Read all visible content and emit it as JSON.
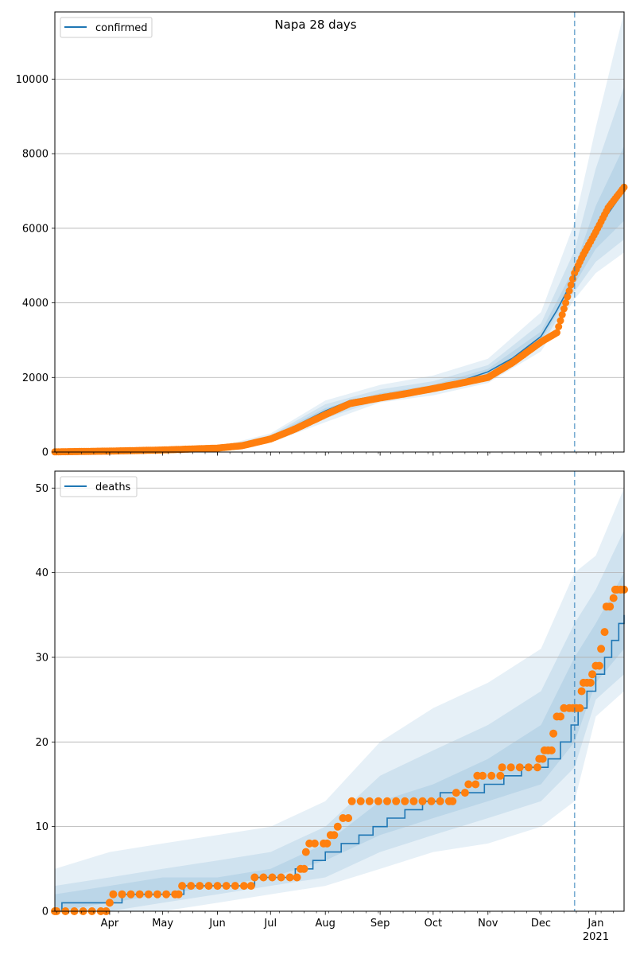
{
  "title": "Napa 28 days",
  "colors": {
    "model": "#1f77b4",
    "observed": "#ff7f0e",
    "band": "#1f77b4",
    "grid": "#b0b0b0",
    "cutoff": "#1f77b4"
  },
  "x_ticks": [
    {
      "label": "Apr",
      "date": "2020-04-01"
    },
    {
      "label": "May",
      "date": "2020-05-01"
    },
    {
      "label": "Jun",
      "date": "2020-06-01"
    },
    {
      "label": "Jul",
      "date": "2020-07-01"
    },
    {
      "label": "Aug",
      "date": "2020-08-01"
    },
    {
      "label": "Sep",
      "date": "2020-09-01"
    },
    {
      "label": "Oct",
      "date": "2020-10-01"
    },
    {
      "label": "Nov",
      "date": "2020-11-01"
    },
    {
      "label": "Dec",
      "date": "2020-12-01"
    },
    {
      "label": "Jan",
      "date": "2021-01-01"
    }
  ],
  "x_year_label": "2021",
  "chart_data": [
    {
      "type": "line",
      "legend": "confirmed",
      "legend_position": "upper left",
      "grid": true,
      "xlim": [
        "2020-03-01",
        "2021-01-17"
      ],
      "ylim": [
        0,
        11800
      ],
      "yticks": [
        0,
        2000,
        4000,
        6000,
        8000,
        10000
      ],
      "forecast_start": "2020-12-20",
      "series": [
        {
          "name": "confirmed",
          "kind": "model",
          "x": [
            "2020-03-01",
            "2020-04-01",
            "2020-05-01",
            "2020-06-01",
            "2020-06-15",
            "2020-07-01",
            "2020-07-15",
            "2020-08-01",
            "2020-08-15",
            "2020-09-01",
            "2020-09-15",
            "2020-10-01",
            "2020-10-15",
            "2020-11-01",
            "2020-11-15",
            "2020-12-01",
            "2020-12-10",
            "2020-12-20",
            "2020-12-25",
            "2021-01-01",
            "2021-01-08",
            "2021-01-17"
          ],
          "y": [
            0,
            20,
            50,
            100,
            180,
            380,
            700,
            1100,
            1380,
            1520,
            1620,
            1730,
            1880,
            2150,
            2520,
            3100,
            3800,
            4700,
            5150,
            5800,
            6400,
            7000
          ]
        },
        {
          "name": "observed",
          "kind": "scatter",
          "x": [
            "2020-03-01",
            "2020-04-01",
            "2020-05-01",
            "2020-06-01",
            "2020-06-15",
            "2020-07-01",
            "2020-07-15",
            "2020-08-01",
            "2020-08-15",
            "2020-09-01",
            "2020-09-15",
            "2020-10-01",
            "2020-10-15",
            "2020-11-01",
            "2020-11-15",
            "2020-12-01",
            "2020-12-10",
            "2020-12-20",
            "2020-12-25",
            "2021-01-01",
            "2021-01-08",
            "2021-01-17"
          ],
          "y": [
            5,
            25,
            55,
            105,
            170,
            350,
            620,
            1000,
            1300,
            1450,
            1560,
            1700,
            1830,
            2000,
            2400,
            2950,
            3200,
            4800,
            5300,
            5900,
            6550,
            7100
          ]
        }
      ],
      "bands": [
        {
          "level": "outer",
          "x": [
            "2020-03-01",
            "2020-06-01",
            "2020-07-01",
            "2020-08-01",
            "2020-09-01",
            "2020-10-01",
            "2020-11-01",
            "2020-12-01",
            "2020-12-20",
            "2021-01-01",
            "2021-01-17"
          ],
          "lower": [
            0,
            70,
            250,
            800,
            1330,
            1520,
            1850,
            2700,
            4100,
            4800,
            5350
          ],
          "upper": [
            60,
            140,
            500,
            1380,
            1800,
            2050,
            2500,
            3750,
            6150,
            8700,
            11800
          ]
        },
        {
          "level": "mid",
          "x": [
            "2020-03-01",
            "2020-06-01",
            "2020-07-01",
            "2020-08-01",
            "2020-09-01",
            "2020-10-01",
            "2020-11-01",
            "2020-12-01",
            "2020-12-20",
            "2021-01-01",
            "2021-01-17"
          ],
          "lower": [
            0,
            80,
            290,
            900,
            1400,
            1600,
            1950,
            2850,
            4300,
            5100,
            5700
          ],
          "upper": [
            40,
            120,
            450,
            1280,
            1680,
            1900,
            2330,
            3450,
            5400,
            7600,
            9800
          ]
        },
        {
          "level": "inner",
          "x": [
            "2020-03-01",
            "2020-06-01",
            "2020-07-01",
            "2020-08-01",
            "2020-09-01",
            "2020-10-01",
            "2020-11-01",
            "2020-12-01",
            "2020-12-20",
            "2021-01-01",
            "2021-01-17"
          ],
          "lower": [
            0,
            90,
            330,
            1000,
            1460,
            1670,
            2050,
            2980,
            4500,
            5450,
            6200
          ],
          "upper": [
            30,
            110,
            420,
            1180,
            1580,
            1800,
            2230,
            3230,
            4950,
            6600,
            8200
          ]
        }
      ]
    },
    {
      "type": "line",
      "legend": "deaths",
      "legend_position": "upper left",
      "grid": true,
      "xlim": [
        "2020-03-01",
        "2021-01-17"
      ],
      "ylim": [
        0,
        52
      ],
      "yticks": [
        0,
        10,
        20,
        30,
        40,
        50
      ],
      "forecast_start": "2020-12-20",
      "series": [
        {
          "name": "deaths",
          "kind": "model",
          "x": [
            "2020-03-01",
            "2020-03-05",
            "2020-04-05",
            "2020-04-08",
            "2020-05-13",
            "2020-05-15",
            "2020-06-15",
            "2020-06-22",
            "2020-07-05",
            "2020-07-15",
            "2020-07-25",
            "2020-08-01",
            "2020-08-10",
            "2020-08-20",
            "2020-08-28",
            "2020-09-05",
            "2020-09-15",
            "2020-09-25",
            "2020-10-05",
            "2020-10-20",
            "2020-10-30",
            "2020-11-10",
            "2020-11-20",
            "2020-11-28",
            "2020-12-05",
            "2020-12-12",
            "2020-12-18",
            "2020-12-22",
            "2020-12-27",
            "2021-01-01",
            "2021-01-06",
            "2021-01-10",
            "2021-01-14",
            "2021-01-17"
          ],
          "y": [
            0,
            1,
            1,
            2,
            3,
            3,
            3,
            4,
            4,
            5,
            6,
            7,
            8,
            9,
            10,
            11,
            12,
            13,
            14,
            14,
            15,
            16,
            17,
            17,
            18,
            20,
            22,
            24,
            26,
            28,
            30,
            32,
            34,
            35
          ]
        },
        {
          "name": "observed",
          "kind": "scatter",
          "x": [
            "2020-03-01",
            "2020-03-02",
            "2020-03-07",
            "2020-03-12",
            "2020-03-17",
            "2020-03-22",
            "2020-03-27",
            "2020-03-30",
            "2020-04-01",
            "2020-04-03",
            "2020-04-08",
            "2020-04-13",
            "2020-04-18",
            "2020-04-23",
            "2020-04-28",
            "2020-05-03",
            "2020-05-08",
            "2020-05-10",
            "2020-05-12",
            "2020-05-17",
            "2020-05-22",
            "2020-05-27",
            "2020-06-01",
            "2020-06-06",
            "2020-06-11",
            "2020-06-16",
            "2020-06-20",
            "2020-06-22",
            "2020-06-27",
            "2020-07-02",
            "2020-07-07",
            "2020-07-12",
            "2020-07-16",
            "2020-07-18",
            "2020-07-20",
            "2020-07-21",
            "2020-07-23",
            "2020-07-26",
            "2020-07-31",
            "2020-08-02",
            "2020-08-04",
            "2020-08-06",
            "2020-08-08",
            "2020-08-11",
            "2020-08-14",
            "2020-08-16",
            "2020-08-21",
            "2020-08-26",
            "2020-08-31",
            "2020-09-05",
            "2020-09-10",
            "2020-09-15",
            "2020-09-20",
            "2020-09-25",
            "2020-09-30",
            "2020-10-05",
            "2020-10-10",
            "2020-10-12",
            "2020-10-14",
            "2020-10-19",
            "2020-10-21",
            "2020-10-25",
            "2020-10-26",
            "2020-10-29",
            "2020-11-03",
            "2020-11-08",
            "2020-11-09",
            "2020-11-14",
            "2020-11-19",
            "2020-11-24",
            "2020-11-29",
            "2020-11-30",
            "2020-12-02",
            "2020-12-03",
            "2020-12-05",
            "2020-12-07",
            "2020-12-08",
            "2020-12-10",
            "2020-12-12",
            "2020-12-14",
            "2020-12-17",
            "2020-12-19",
            "2020-12-21",
            "2020-12-23",
            "2020-12-24",
            "2020-12-25",
            "2020-12-27",
            "2020-12-29",
            "2020-12-30",
            "2021-01-01",
            "2021-01-03",
            "2021-01-04",
            "2021-01-06",
            "2021-01-07",
            "2021-01-09",
            "2021-01-11",
            "2021-01-12",
            "2021-01-13",
            "2021-01-15",
            "2021-01-17"
          ],
          "y": [
            0,
            0,
            0,
            0,
            0,
            0,
            0,
            0,
            1,
            2,
            2,
            2,
            2,
            2,
            2,
            2,
            2,
            2,
            3,
            3,
            3,
            3,
            3,
            3,
            3,
            3,
            3,
            4,
            4,
            4,
            4,
            4,
            4,
            5,
            5,
            7,
            8,
            8,
            8,
            8,
            9,
            9,
            10,
            11,
            11,
            13,
            13,
            13,
            13,
            13,
            13,
            13,
            13,
            13,
            13,
            13,
            13,
            13,
            14,
            14,
            15,
            15,
            16,
            16,
            16,
            16,
            17,
            17,
            17,
            17,
            17,
            18,
            18,
            19,
            19,
            19,
            21,
            23,
            23,
            24,
            24,
            24,
            24,
            24,
            26,
            27,
            27,
            27,
            28,
            29,
            29,
            31,
            33,
            36,
            36,
            37,
            38,
            38,
            38,
            38
          ]
        }
      ],
      "bands": [
        {
          "level": "outer",
          "x": [
            "2020-03-01",
            "2020-04-01",
            "2020-05-01",
            "2020-06-01",
            "2020-07-01",
            "2020-08-01",
            "2020-09-01",
            "2020-10-01",
            "2020-11-01",
            "2020-12-01",
            "2020-12-20",
            "2021-01-01",
            "2021-01-17"
          ],
          "lower": [
            0,
            0,
            0,
            1,
            2,
            3,
            5,
            7,
            8,
            10,
            13,
            23,
            26
          ],
          "upper": [
            5,
            7,
            8,
            9,
            10,
            13,
            20,
            24,
            27,
            31,
            40,
            42,
            50
          ]
        },
        {
          "level": "mid",
          "x": [
            "2020-03-01",
            "2020-04-01",
            "2020-05-01",
            "2020-06-01",
            "2020-07-01",
            "2020-08-01",
            "2020-09-01",
            "2020-10-01",
            "2020-11-01",
            "2020-12-01",
            "2020-12-20",
            "2021-01-01",
            "2021-01-17"
          ],
          "lower": [
            0,
            0,
            1,
            2,
            3,
            4,
            7,
            9,
            11,
            13,
            17,
            25,
            28
          ],
          "upper": [
            3,
            4,
            5,
            6,
            7,
            10,
            16,
            19,
            22,
            26,
            34,
            38,
            45
          ]
        },
        {
          "level": "inner",
          "x": [
            "2020-03-01",
            "2020-04-01",
            "2020-05-01",
            "2020-06-01",
            "2020-07-01",
            "2020-08-01",
            "2020-09-01",
            "2020-10-01",
            "2020-11-01",
            "2020-12-01",
            "2020-12-20",
            "2021-01-01",
            "2021-01-17"
          ],
          "lower": [
            0,
            1,
            2,
            3,
            4,
            6,
            9,
            11,
            13,
            15,
            20,
            27,
            31
          ],
          "upper": [
            2,
            3,
            4,
            4,
            5,
            8,
            13,
            15,
            18,
            22,
            30,
            34,
            40
          ]
        }
      ]
    }
  ]
}
